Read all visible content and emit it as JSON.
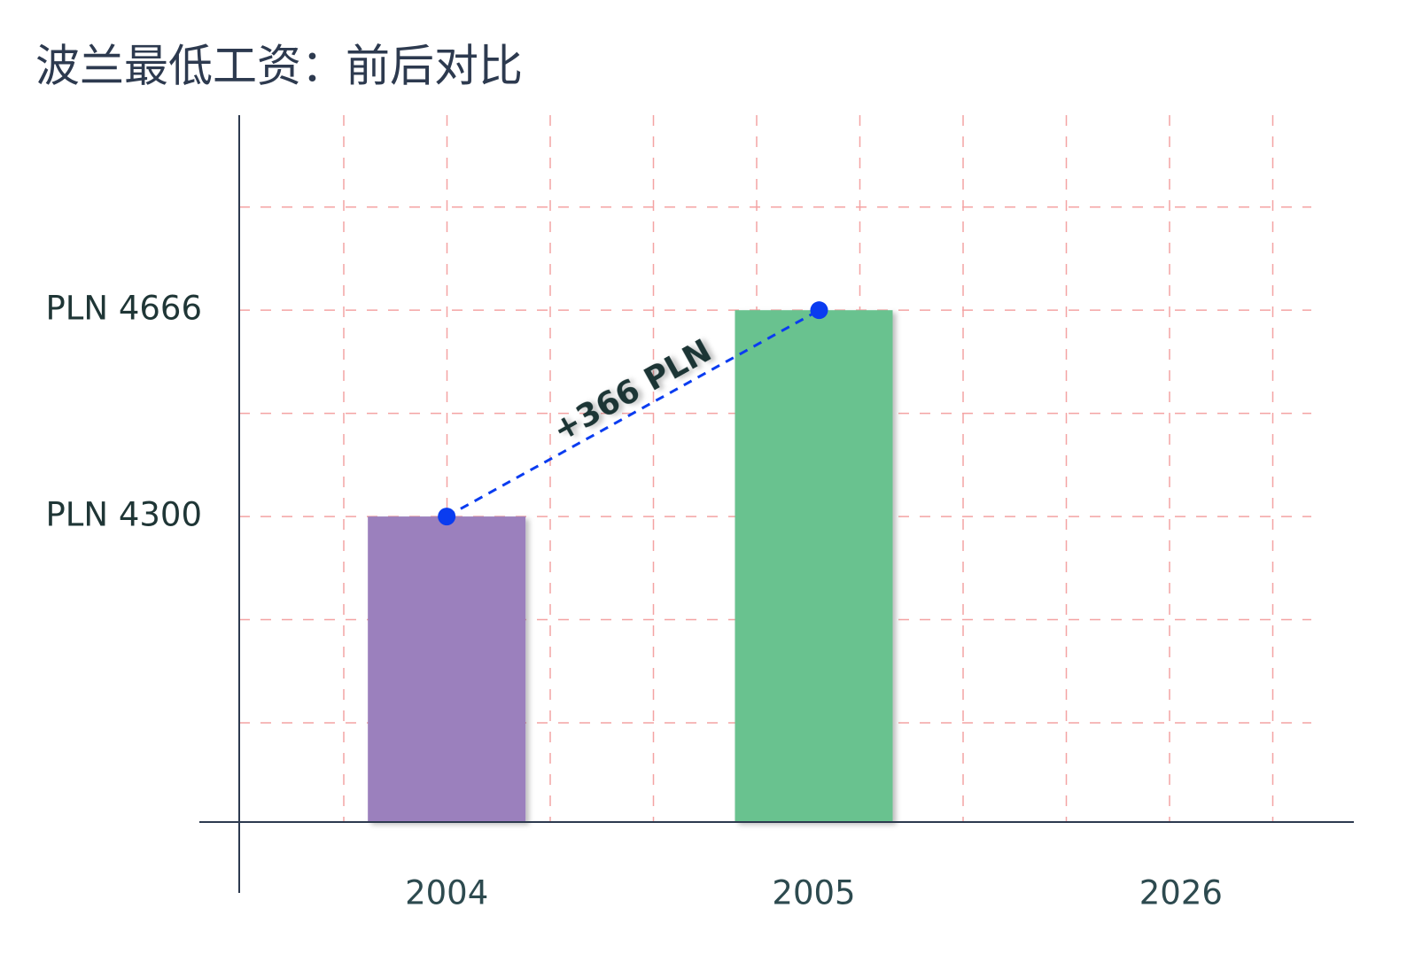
{
  "chart_data": {
    "type": "bar",
    "title": "波兰最低工资：前后对比",
    "categories": [
      "2004",
      "2005",
      "2026"
    ],
    "values": [
      4300,
      4666,
      null
    ],
    "colors": [
      "#9b80bd",
      "#69c28f"
    ],
    "ylim": [
      3758,
      5012
    ],
    "yticks": [
      {
        "value": 4300,
        "label": "PLN 4300"
      },
      {
        "value": 4666,
        "label": "PLN 4666"
      }
    ],
    "grid_lines": [
      3934,
      4117,
      4300,
      4483,
      4666,
      4849
    ],
    "grid": true,
    "annotation": "+366 PLN",
    "annotation_color": "#0a3cf0"
  }
}
